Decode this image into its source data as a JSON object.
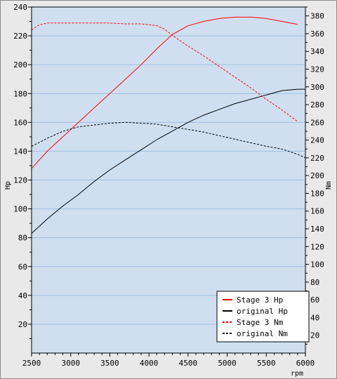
{
  "chart_data": {
    "type": "line",
    "xlabel": "rpm",
    "ylabel_left": "Hp",
    "ylabel_right": "Nm",
    "xlim": [
      2500,
      6000
    ],
    "ylim_left": [
      0,
      240
    ],
    "ylim_right": [
      0,
      390
    ],
    "x_ticks": [
      2500,
      3000,
      3500,
      4000,
      4500,
      5000,
      5500,
      6000
    ],
    "y_left_ticks": [
      20,
      40,
      60,
      80,
      100,
      120,
      140,
      160,
      180,
      200,
      220,
      240
    ],
    "y_right_ticks": [
      20,
      40,
      60,
      80,
      100,
      120,
      140,
      160,
      180,
      200,
      220,
      240,
      260,
      280,
      300,
      320,
      340,
      360,
      380
    ],
    "grid": true,
    "legend_position": "bottom-right",
    "series": [
      {
        "name": "Stage 3 Hp",
        "axis": "left",
        "color": "#ff0000",
        "dash": "solid",
        "x": [
          2500,
          2700,
          2900,
          3100,
          3300,
          3500,
          3700,
          3900,
          4100,
          4300,
          4500,
          4700,
          4900,
          5100,
          5300,
          5500,
          5700,
          5900
        ],
        "y": [
          128,
          140,
          150,
          160,
          170,
          180,
          190,
          200,
          211,
          221,
          227,
          230,
          232,
          233,
          233,
          232,
          230,
          228
        ]
      },
      {
        "name": "original Hp",
        "axis": "left",
        "color": "#000000",
        "dash": "solid",
        "x": [
          2500,
          2700,
          2900,
          3100,
          3300,
          3500,
          3700,
          3900,
          4100,
          4300,
          4500,
          4700,
          4900,
          5100,
          5300,
          5500,
          5700,
          5900,
          6000
        ],
        "y": [
          83,
          93,
          102,
          110,
          119,
          127,
          134,
          141,
          148,
          154,
          160,
          165,
          169,
          173,
          176,
          179,
          182,
          183,
          183
        ]
      },
      {
        "name": "Stage 3 Nm",
        "axis": "right",
        "color": "#ff0000",
        "dash": "dashed",
        "x": [
          2500,
          2600,
          2700,
          2900,
          3100,
          3300,
          3500,
          3700,
          3900,
          4100,
          4200,
          4300,
          4500,
          4700,
          4900,
          5100,
          5300,
          5500,
          5700,
          5900
        ],
        "y": [
          364,
          370,
          372,
          372,
          372,
          372,
          372,
          371,
          371,
          369,
          365,
          358,
          346,
          335,
          323,
          311,
          299,
          286,
          274,
          261
        ]
      },
      {
        "name": "original Nm",
        "axis": "right",
        "color": "#000000",
        "dash": "dashed",
        "x": [
          2500,
          2700,
          2900,
          3100,
          3300,
          3500,
          3700,
          3900,
          4100,
          4300,
          4500,
          4700,
          4900,
          5100,
          5300,
          5500,
          5700,
          5900,
          6000
        ],
        "y": [
          233,
          242,
          250,
          255,
          257,
          259,
          260,
          259,
          258,
          255,
          252,
          249,
          245,
          241,
          237,
          233,
          230,
          224,
          220
        ]
      }
    ]
  }
}
